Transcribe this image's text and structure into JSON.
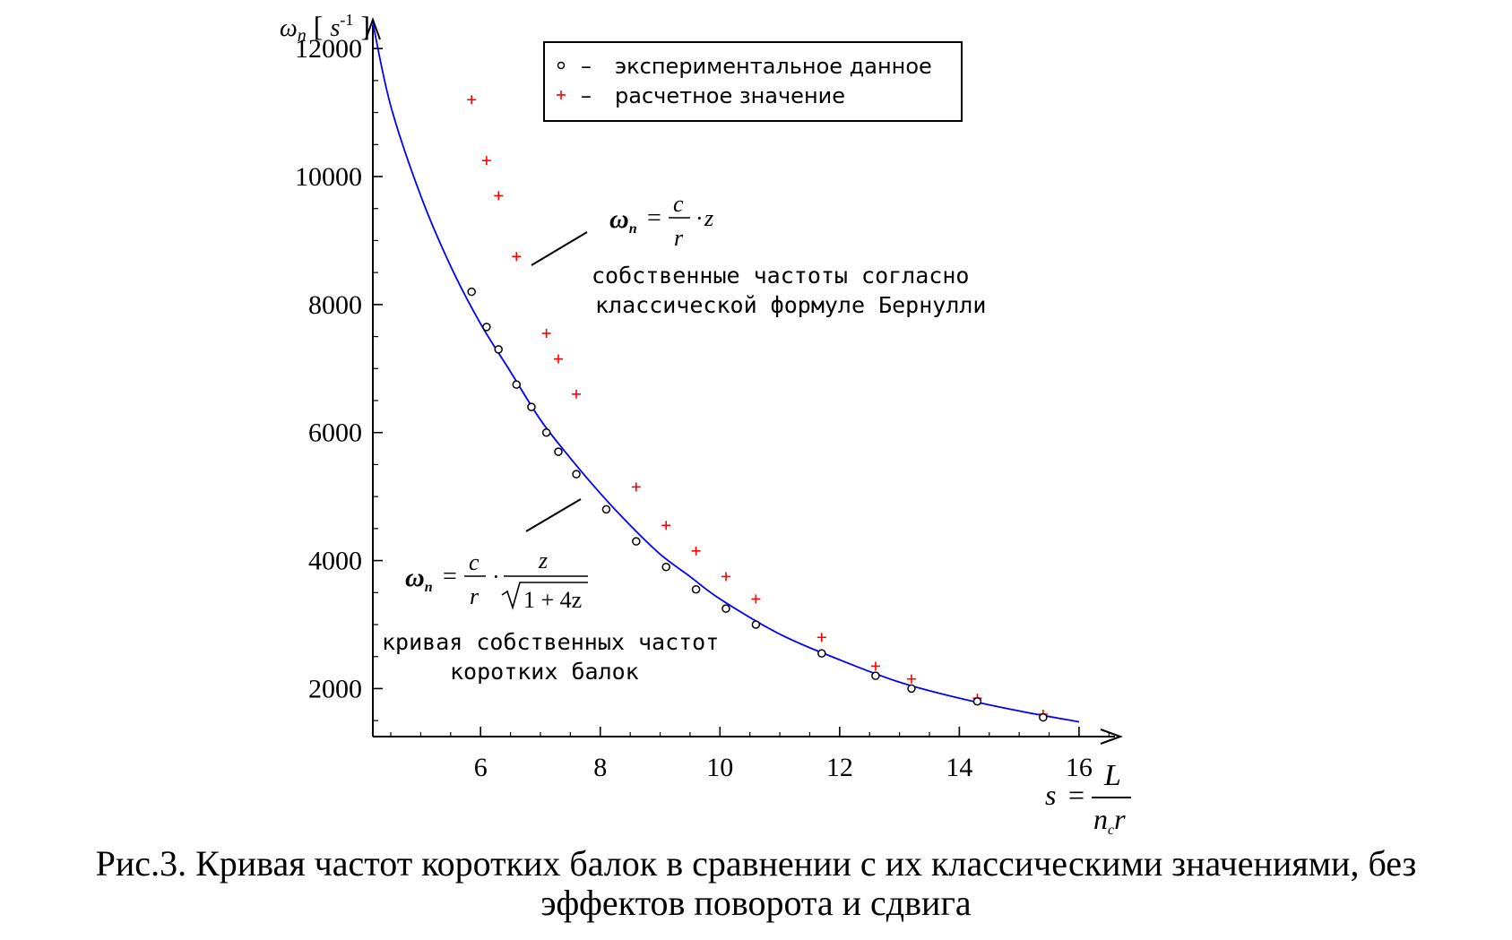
{
  "figure": {
    "caption_line1": "Рис.3. Кривая частот коротких балок в сравнении с их классическими значениями, без",
    "caption_line2": "эффектов поворота и сдвига"
  },
  "chart_data": {
    "type": "scatter",
    "title": "",
    "ylabel_symbol": "ω",
    "ylabel_subscript": "n",
    "ylabel_unit": "s",
    "ylabel_unit_power": "-1",
    "xlabel_symbol": "s",
    "xlabel_numerator": "L",
    "xlabel_denominator": "n",
    "xlabel_denominator_sub": "c",
    "xlabel_denominator_rest": "r",
    "xlim": [
      4.2,
      16.6
    ],
    "ylim": [
      1250,
      12450
    ],
    "xticks": [
      6,
      8,
      10,
      12,
      14,
      16
    ],
    "xtick_labels": [
      "6",
      "8",
      "10",
      "12",
      "14",
      "16"
    ],
    "yticks": [
      2000,
      4000,
      6000,
      8000,
      10000,
      12000
    ],
    "ytick_labels": [
      "2000",
      "4000",
      "6000",
      "8000",
      "10000",
      "12000"
    ],
    "grid": false,
    "legend_position": "top-center",
    "colors": {
      "experimental": "#000000",
      "calculated": "#ff0000",
      "curve": "#0000ff"
    },
    "legend": [
      {
        "marker": "o",
        "dash": "–",
        "label": "экспериментальное  данное"
      },
      {
        "marker": "+",
        "dash": "–",
        "label": "расчетное  значение"
      }
    ],
    "series": [
      {
        "name": "экспериментальное данное",
        "marker": "circle",
        "x": [
          5.85,
          6.1,
          6.3,
          6.6,
          6.85,
          7.1,
          7.3,
          7.6,
          8.1,
          8.6,
          9.1,
          9.6,
          10.1,
          10.6,
          11.7,
          12.6,
          13.2,
          14.3,
          15.4
        ],
        "y": [
          8200,
          7650,
          7300,
          6750,
          6400,
          6000,
          5700,
          5350,
          4800,
          4300,
          3900,
          3550,
          3250,
          3000,
          2550,
          2200,
          2000,
          1800,
          1550
        ]
      },
      {
        "name": "расчетное значение",
        "marker": "plus",
        "x": [
          5.85,
          6.1,
          6.3,
          6.6,
          7.1,
          7.3,
          7.6,
          8.6,
          9.1,
          9.6,
          10.1,
          10.6,
          11.7,
          12.6,
          13.2,
          14.3,
          15.4
        ],
        "y": [
          11200,
          10250,
          9700,
          8750,
          7550,
          7150,
          6600,
          5150,
          4550,
          4150,
          3750,
          3400,
          2800,
          2350,
          2150,
          1850,
          1600
        ]
      },
      {
        "name": "кривая собственных частот коротких балок",
        "marker": "line",
        "x": [
          4.2,
          4.5,
          5,
          5.5,
          6,
          6.5,
          7,
          7.5,
          8,
          8.5,
          9,
          9.5,
          10,
          11,
          12,
          13,
          14,
          15,
          16
        ],
        "y": [
          12400,
          11100,
          9700,
          8600,
          7700,
          6950,
          6200,
          5600,
          5050,
          4550,
          4100,
          3750,
          3400,
          2850,
          2450,
          2100,
          1850,
          1650,
          1480
        ]
      }
    ],
    "annotations": {
      "upper_formula": {
        "lhs": "ω",
        "lhs_sub": "n",
        "eq": "=",
        "num": "c",
        "den": "r",
        "dot": "·",
        "rest": "z"
      },
      "upper_text_line1": "собственные  частоты  согласно",
      "upper_text_line2": "классической  формуле  Бернулли",
      "lower_formula": {
        "lhs": "ω",
        "lhs_sub": "n",
        "eq": "=",
        "num": "c",
        "den": "r",
        "dot": "·",
        "num2": "z",
        "den2": "1 + 4z"
      },
      "lower_text_line1": "кривая  собственных  частот",
      "lower_text_line2": "коротких  балок"
    }
  }
}
